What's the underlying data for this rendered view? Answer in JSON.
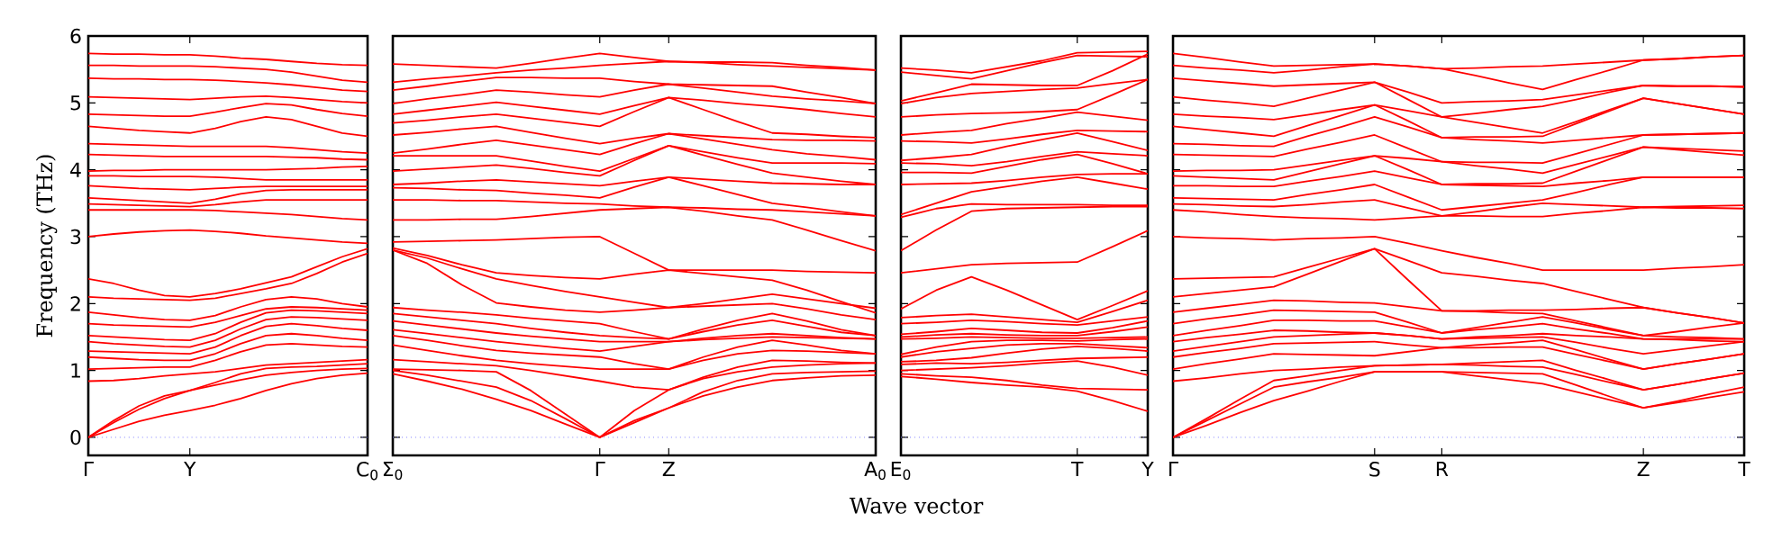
{
  "chart_data": [
    {
      "type": "line",
      "color": "#ff0000",
      "ylabel": "Frequency (THz)",
      "ylim": [
        -0.27,
        6
      ],
      "categories": [
        "Γ",
        null,
        null,
        null,
        "Y",
        null,
        null,
        null,
        null,
        null,
        null,
        "C$_{0}$"
      ],
      "yticks": [
        0,
        1,
        2,
        3,
        4,
        5,
        6
      ],
      "ref_lines": [
        {
          "axis": "y",
          "value": 0,
          "color": "#8080ff",
          "line_style": "dotted"
        }
      ],
      "series": [
        {
          "values": [
            0,
            0.12,
            0.24,
            0.33,
            0.4,
            0.48,
            0.58,
            0.7,
            0.8,
            0.88,
            0.93,
            0.96
          ]
        },
        {
          "values": [
            0,
            0.22,
            0.42,
            0.58,
            0.7,
            0.78,
            0.86,
            0.93,
            0.97,
            1.0,
            1.02,
            1.03
          ]
        },
        {
          "values": [
            0,
            0.25,
            0.47,
            0.62,
            0.7,
            0.82,
            0.95,
            1.03,
            1.05,
            1.06,
            1.08,
            1.1
          ]
        },
        {
          "values": [
            0.84,
            0.85,
            0.88,
            0.92,
            0.95,
            0.98,
            1.03,
            1.08,
            1.1,
            1.12,
            1.14,
            1.16
          ]
        },
        {
          "values": [
            1.02,
            1.03,
            1.04,
            1.05,
            1.05,
            1.15,
            1.28,
            1.38,
            1.4,
            1.38,
            1.36,
            1.35
          ]
        },
        {
          "values": [
            1.2,
            1.18,
            1.16,
            1.15,
            1.15,
            1.25,
            1.4,
            1.52,
            1.55,
            1.52,
            1.48,
            1.45
          ]
        },
        {
          "values": [
            1.29,
            1.28,
            1.27,
            1.26,
            1.25,
            1.35,
            1.52,
            1.66,
            1.7,
            1.67,
            1.63,
            1.6
          ]
        },
        {
          "values": [
            1.43,
            1.4,
            1.38,
            1.36,
            1.35,
            1.45,
            1.62,
            1.76,
            1.8,
            1.79,
            1.77,
            1.75
          ]
        },
        {
          "values": [
            1.52,
            1.5,
            1.48,
            1.46,
            1.45,
            1.55,
            1.72,
            1.86,
            1.9,
            1.89,
            1.87,
            1.85
          ]
        },
        {
          "values": [
            1.7,
            1.68,
            1.67,
            1.66,
            1.65,
            1.72,
            1.82,
            1.92,
            1.95,
            1.94,
            1.92,
            1.9
          ]
        },
        {
          "values": [
            1.87,
            1.83,
            1.79,
            1.76,
            1.75,
            1.82,
            1.95,
            2.06,
            2.1,
            2.07,
            2.0,
            1.95
          ]
        },
        {
          "values": [
            2.1,
            2.08,
            2.07,
            2.06,
            2.05,
            2.08,
            2.15,
            2.22,
            2.3,
            2.45,
            2.62,
            2.75
          ]
        },
        {
          "values": [
            2.37,
            2.3,
            2.2,
            2.12,
            2.1,
            2.15,
            2.22,
            2.31,
            2.4,
            2.55,
            2.7,
            2.82
          ]
        },
        {
          "values": [
            3.0,
            3.04,
            3.07,
            3.09,
            3.1,
            3.08,
            3.05,
            3.01,
            2.98,
            2.95,
            2.92,
            2.9
          ]
        },
        {
          "values": [
            3.4,
            3.4,
            3.4,
            3.4,
            3.4,
            3.39,
            3.37,
            3.35,
            3.33,
            3.3,
            3.27,
            3.25
          ]
        },
        {
          "values": [
            3.49,
            3.48,
            3.47,
            3.46,
            3.45,
            3.48,
            3.52,
            3.55,
            3.55,
            3.55,
            3.55,
            3.55
          ]
        },
        {
          "values": [
            3.58,
            3.56,
            3.54,
            3.52,
            3.5,
            3.56,
            3.64,
            3.69,
            3.7,
            3.7,
            3.7,
            3.7
          ]
        },
        {
          "values": [
            3.76,
            3.74,
            3.72,
            3.71,
            3.7,
            3.72,
            3.74,
            3.75,
            3.75,
            3.75,
            3.75,
            3.75
          ]
        },
        {
          "values": [
            3.91,
            3.91,
            3.9,
            3.9,
            3.9,
            3.89,
            3.87,
            3.85,
            3.85,
            3.85,
            3.85,
            3.85
          ]
        },
        {
          "values": [
            3.98,
            3.99,
            3.99,
            4.0,
            4.0,
            4.0,
            4.0,
            4.0,
            4.01,
            4.02,
            4.04,
            4.05
          ]
        },
        {
          "values": [
            4.23,
            4.22,
            4.21,
            4.2,
            4.2,
            4.2,
            4.2,
            4.2,
            4.19,
            4.18,
            4.16,
            4.15
          ]
        },
        {
          "values": [
            4.39,
            4.38,
            4.37,
            4.36,
            4.35,
            4.35,
            4.35,
            4.35,
            4.33,
            4.3,
            4.27,
            4.25
          ]
        },
        {
          "values": [
            4.65,
            4.62,
            4.59,
            4.57,
            4.55,
            4.62,
            4.72,
            4.79,
            4.75,
            4.65,
            4.55,
            4.5
          ]
        },
        {
          "values": [
            4.83,
            4.82,
            4.81,
            4.8,
            4.8,
            4.86,
            4.93,
            4.99,
            4.97,
            4.9,
            4.84,
            4.8
          ]
        },
        {
          "values": [
            5.09,
            5.08,
            5.07,
            5.06,
            5.05,
            5.07,
            5.09,
            5.1,
            5.08,
            5.05,
            5.02,
            5.0
          ]
        },
        {
          "values": [
            5.37,
            5.36,
            5.36,
            5.35,
            5.35,
            5.34,
            5.32,
            5.3,
            5.27,
            5.23,
            5.19,
            5.17
          ]
        },
        {
          "values": [
            5.56,
            5.56,
            5.55,
            5.55,
            5.55,
            5.54,
            5.52,
            5.5,
            5.46,
            5.4,
            5.34,
            5.31
          ]
        },
        {
          "values": [
            5.74,
            5.73,
            5.73,
            5.72,
            5.72,
            5.7,
            5.67,
            5.65,
            5.62,
            5.59,
            5.57,
            5.56
          ]
        }
      ]
    },
    {
      "type": "line",
      "color": "#ff0000",
      "xlabel": "Wave vector",
      "ylim": [
        -0.27,
        6
      ],
      "categories": [
        "Σ$_{0}$",
        null,
        null,
        null,
        null,
        null,
        "Γ",
        null,
        "Z",
        null,
        null,
        null,
        null,
        null,
        "A$_{0}$"
      ],
      "yticks": [
        0,
        1,
        2,
        3,
        4,
        5,
        6
      ],
      "tick_labels": "x",
      "ref_lines": [
        {
          "axis": "y",
          "value": 0,
          "color": "#8080ff",
          "line_style": "dotted"
        }
      ],
      "series": [
        {
          "values": [
            0.95,
            0.84,
            0.72,
            0.57,
            0.4,
            0.2,
            0,
            0.22,
            0.44,
            0.62,
            0.75,
            0.85,
            0.89,
            0.92,
            0.93
          ]
        },
        {
          "values": [
            1.0,
            0.93,
            0.84,
            0.75,
            0.55,
            0.28,
            0,
            0.25,
            0.44,
            0.68,
            0.85,
            0.95,
            0.97,
            0.98,
            0.99
          ]
        },
        {
          "values": [
            1.02,
            1.01,
            1.0,
            0.98,
            0.7,
            0.35,
            0,
            0.4,
            0.71,
            0.88,
            0.98,
            1.05,
            1.08,
            1.1,
            1.11
          ]
        },
        {
          "values": [
            1.16,
            1.13,
            1.1,
            1.07,
            1.0,
            0.92,
            0.84,
            0.75,
            0.71,
            0.9,
            1.05,
            1.15,
            1.14,
            1.12,
            1.11
          ]
        },
        {
          "values": [
            1.38,
            1.3,
            1.22,
            1.15,
            1.1,
            1.06,
            1.02,
            1.02,
            1.02,
            1.15,
            1.25,
            1.3,
            1.29,
            1.27,
            1.25
          ]
        },
        {
          "values": [
            1.52,
            1.45,
            1.37,
            1.3,
            1.26,
            1.23,
            1.2,
            1.1,
            1.02,
            1.2,
            1.35,
            1.45,
            1.38,
            1.3,
            1.25
          ]
        },
        {
          "values": [
            1.61,
            1.55,
            1.49,
            1.43,
            1.38,
            1.33,
            1.29,
            1.36,
            1.43,
            1.46,
            1.48,
            1.5,
            1.49,
            1.48,
            1.47
          ]
        },
        {
          "values": [
            1.74,
            1.68,
            1.62,
            1.56,
            1.51,
            1.47,
            1.43,
            1.43,
            1.43,
            1.48,
            1.52,
            1.55,
            1.52,
            1.49,
            1.47
          ]
        },
        {
          "values": [
            1.85,
            1.8,
            1.75,
            1.7,
            1.63,
            1.57,
            1.52,
            1.49,
            1.47,
            1.58,
            1.68,
            1.75,
            1.66,
            1.57,
            1.52
          ]
        },
        {
          "values": [
            1.94,
            1.9,
            1.87,
            1.83,
            1.78,
            1.74,
            1.7,
            1.58,
            1.47,
            1.62,
            1.75,
            1.85,
            1.74,
            1.61,
            1.52
          ]
        },
        {
          "values": [
            2.8,
            2.6,
            2.28,
            2.01,
            1.95,
            1.9,
            1.87,
            1.9,
            1.94,
            1.96,
            1.98,
            2.0,
            1.92,
            1.83,
            1.76
          ]
        },
        {
          "values": [
            2.8,
            2.68,
            2.52,
            2.37,
            2.27,
            2.18,
            2.1,
            2.02,
            1.94,
            2.0,
            2.07,
            2.14,
            2.07,
            2.0,
            1.93
          ]
        },
        {
          "values": [
            2.83,
            2.72,
            2.58,
            2.46,
            2.42,
            2.39,
            2.37,
            2.44,
            2.5,
            2.45,
            2.4,
            2.35,
            2.2,
            2.03,
            1.86
          ]
        },
        {
          "values": [
            2.92,
            2.93,
            2.94,
            2.95,
            2.97,
            2.99,
            3.0,
            2.75,
            2.5,
            2.5,
            2.5,
            2.5,
            2.48,
            2.47,
            2.46
          ]
        },
        {
          "values": [
            3.25,
            3.25,
            3.26,
            3.26,
            3.3,
            3.35,
            3.4,
            3.42,
            3.44,
            3.38,
            3.31,
            3.25,
            3.1,
            2.94,
            2.79
          ]
        },
        {
          "values": [
            3.55,
            3.55,
            3.54,
            3.54,
            3.52,
            3.5,
            3.49,
            3.46,
            3.44,
            3.43,
            3.41,
            3.4,
            3.37,
            3.34,
            3.31
          ]
        },
        {
          "values": [
            3.73,
            3.72,
            3.7,
            3.69,
            3.65,
            3.62,
            3.58,
            3.74,
            3.89,
            3.76,
            3.63,
            3.5,
            3.44,
            3.37,
            3.31
          ]
        },
        {
          "values": [
            3.78,
            3.8,
            3.83,
            3.85,
            3.82,
            3.79,
            3.76,
            3.83,
            3.89,
            3.86,
            3.83,
            3.8,
            3.79,
            3.78,
            3.78
          ]
        },
        {
          "values": [
            3.98,
            4.01,
            4.04,
            4.07,
            4.02,
            3.96,
            3.91,
            4.14,
            4.36,
            4.22,
            4.08,
            3.95,
            3.89,
            3.83,
            3.78
          ]
        },
        {
          "values": [
            4.21,
            4.21,
            4.21,
            4.21,
            4.13,
            4.05,
            3.98,
            4.17,
            4.36,
            4.27,
            4.18,
            4.1,
            4.1,
            4.1,
            4.09
          ]
        },
        {
          "values": [
            4.25,
            4.31,
            4.38,
            4.44,
            4.37,
            4.3,
            4.23,
            4.39,
            4.54,
            4.46,
            4.38,
            4.3,
            4.24,
            4.2,
            4.15
          ]
        },
        {
          "values": [
            4.52,
            4.56,
            4.61,
            4.65,
            4.56,
            4.47,
            4.39,
            4.47,
            4.54,
            4.51,
            4.48,
            4.45,
            4.44,
            4.44,
            4.43
          ]
        },
        {
          "values": [
            4.7,
            4.74,
            4.79,
            4.83,
            4.77,
            4.71,
            4.65,
            4.87,
            5.08,
            4.9,
            4.72,
            4.55,
            4.53,
            4.5,
            4.48
          ]
        },
        {
          "values": [
            4.83,
            4.89,
            4.95,
            5.01,
            4.95,
            4.89,
            4.83,
            4.96,
            5.08,
            5.04,
            4.99,
            4.95,
            4.9,
            4.84,
            4.79
          ]
        },
        {
          "values": [
            4.99,
            5.06,
            5.12,
            5.19,
            5.16,
            5.12,
            5.09,
            5.19,
            5.28,
            5.22,
            5.16,
            5.1,
            5.06,
            5.03,
            4.99
          ]
        },
        {
          "values": [
            5.19,
            5.25,
            5.32,
            5.38,
            5.38,
            5.37,
            5.37,
            5.32,
            5.28,
            5.27,
            5.26,
            5.25,
            5.16,
            5.08,
            4.99
          ]
        },
        {
          "values": [
            5.31,
            5.36,
            5.4,
            5.45,
            5.49,
            5.52,
            5.56,
            5.59,
            5.62,
            5.6,
            5.57,
            5.55,
            5.53,
            5.51,
            5.49
          ]
        },
        {
          "values": [
            5.58,
            5.56,
            5.54,
            5.52,
            5.59,
            5.67,
            5.74,
            5.68,
            5.62,
            5.61,
            5.61,
            5.6,
            5.56,
            5.53,
            5.49
          ]
        }
      ]
    },
    {
      "type": "line",
      "color": "#ff0000",
      "ylim": [
        -0.27,
        6
      ],
      "categories": [
        "E$_{0}$",
        null,
        null,
        null,
        null,
        "T",
        null,
        "Y"
      ],
      "yticks": [
        0,
        1,
        2,
        3,
        4,
        5,
        6
      ],
      "tick_labels": "x",
      "ref_lines": [
        {
          "axis": "y",
          "value": 0,
          "color": "#8080ff",
          "line_style": "dotted"
        }
      ],
      "series": [
        {
          "values": [
            0.91,
            0.87,
            0.82,
            0.78,
            0.75,
            0.69,
            0.55,
            0.39
          ]
        },
        {
          "values": [
            0.95,
            0.92,
            0.9,
            0.85,
            0.78,
            0.73,
            0.72,
            0.71
          ]
        },
        {
          "values": [
            1.0,
            1.02,
            1.04,
            1.07,
            1.11,
            1.14,
            1.05,
            0.93
          ]
        },
        {
          "values": [
            1.09,
            1.11,
            1.1,
            1.12,
            1.15,
            1.18,
            1.19,
            1.2
          ]
        },
        {
          "values": [
            1.13,
            1.15,
            1.19,
            1.26,
            1.32,
            1.36,
            1.33,
            1.29
          ]
        },
        {
          "values": [
            1.2,
            1.28,
            1.33,
            1.38,
            1.4,
            1.4,
            1.37,
            1.34
          ]
        },
        {
          "values": [
            1.24,
            1.35,
            1.43,
            1.45,
            1.45,
            1.44,
            1.46,
            1.47
          ]
        },
        {
          "values": [
            1.47,
            1.48,
            1.5,
            1.49,
            1.48,
            1.48,
            1.49,
            1.5
          ]
        },
        {
          "values": [
            1.5,
            1.53,
            1.55,
            1.53,
            1.52,
            1.52,
            1.58,
            1.65
          ]
        },
        {
          "values": [
            1.54,
            1.58,
            1.63,
            1.6,
            1.57,
            1.56,
            1.64,
            1.74
          ]
        },
        {
          "values": [
            1.7,
            1.72,
            1.75,
            1.73,
            1.7,
            1.68,
            1.74,
            1.8
          ]
        },
        {
          "values": [
            1.79,
            1.82,
            1.84,
            1.8,
            1.76,
            1.72,
            1.88,
            2.05
          ]
        },
        {
          "values": [
            1.92,
            2.2,
            2.4,
            2.2,
            1.98,
            1.76,
            1.97,
            2.19
          ]
        },
        {
          "values": [
            2.46,
            2.52,
            2.58,
            2.6,
            2.61,
            2.62,
            2.85,
            3.09
          ]
        },
        {
          "values": [
            2.79,
            3.1,
            3.38,
            3.42,
            3.43,
            3.44,
            3.45,
            3.45
          ]
        },
        {
          "values": [
            3.29,
            3.42,
            3.49,
            3.48,
            3.48,
            3.48,
            3.47,
            3.47
          ]
        },
        {
          "values": [
            3.33,
            3.5,
            3.67,
            3.75,
            3.83,
            3.89,
            3.8,
            3.71
          ]
        },
        {
          "values": [
            3.78,
            3.79,
            3.8,
            3.84,
            3.89,
            3.93,
            3.94,
            3.94
          ]
        },
        {
          "values": [
            3.96,
            3.96,
            3.95,
            4.05,
            4.15,
            4.23,
            4.09,
            3.94
          ]
        },
        {
          "values": [
            4.1,
            4.09,
            4.06,
            4.12,
            4.2,
            4.27,
            4.24,
            4.21
          ]
        },
        {
          "values": [
            4.14,
            4.18,
            4.23,
            4.35,
            4.45,
            4.55,
            4.42,
            4.29
          ]
        },
        {
          "values": [
            4.43,
            4.42,
            4.4,
            4.46,
            4.53,
            4.59,
            4.58,
            4.57
          ]
        },
        {
          "values": [
            4.52,
            4.56,
            4.59,
            4.69,
            4.77,
            4.86,
            4.8,
            4.74
          ]
        },
        {
          "values": [
            4.79,
            4.82,
            4.84,
            4.85,
            4.87,
            4.9,
            5.12,
            5.35
          ]
        },
        {
          "values": [
            4.99,
            5.08,
            5.14,
            5.17,
            5.2,
            5.22,
            5.29,
            5.35
          ]
        },
        {
          "values": [
            5.03,
            5.15,
            5.28,
            5.27,
            5.26,
            5.26,
            5.48,
            5.73
          ]
        },
        {
          "values": [
            5.46,
            5.41,
            5.36,
            5.48,
            5.6,
            5.71,
            5.7,
            5.69
          ]
        },
        {
          "values": [
            5.52,
            5.49,
            5.45,
            5.54,
            5.63,
            5.75,
            5.76,
            5.77
          ]
        }
      ]
    },
    {
      "type": "line",
      "color": "#ff0000",
      "ylim": [
        -0.27,
        6
      ],
      "categories": [
        "Γ",
        null,
        null,
        null,
        null,
        null,
        "S",
        null,
        "R",
        null,
        null,
        null,
        null,
        null,
        "Z",
        null,
        null,
        "T"
      ],
      "yticks": [
        0,
        1,
        2,
        3,
        4,
        5,
        6
      ],
      "tick_labels": "x",
      "ref_lines": [
        {
          "axis": "y",
          "value": 0,
          "color": "#8080ff",
          "line_style": "dotted"
        }
      ],
      "series": [
        {
          "values": [
            0,
            0.18,
            0.37,
            0.55,
            0.69,
            0.84,
            0.98,
            0.98,
            0.98,
            0.92,
            0.86,
            0.8,
            0.68,
            0.56,
            0.44,
            0.52,
            0.6,
            0.68
          ]
        },
        {
          "values": [
            0,
            0.25,
            0.5,
            0.75,
            0.83,
            0.9,
            0.98,
            0.98,
            0.98,
            0.97,
            0.96,
            0.95,
            0.78,
            0.61,
            0.44,
            0.54,
            0.65,
            0.75
          ]
        },
        {
          "values": [
            0,
            0.28,
            0.57,
            0.85,
            0.92,
            1.0,
            1.07,
            1.08,
            1.09,
            1.08,
            1.06,
            1.05,
            0.94,
            0.82,
            0.71,
            0.79,
            0.88,
            0.96
          ]
        },
        {
          "values": [
            0.84,
            0.89,
            0.95,
            1.0,
            1.02,
            1.05,
            1.07,
            1.08,
            1.09,
            1.11,
            1.13,
            1.15,
            1.0,
            0.86,
            0.71,
            0.79,
            0.88,
            0.96
          ]
        },
        {
          "values": [
            1.02,
            1.1,
            1.17,
            1.25,
            1.24,
            1.23,
            1.22,
            1.28,
            1.34,
            1.34,
            1.35,
            1.35,
            1.24,
            1.13,
            1.02,
            1.1,
            1.17,
            1.25
          ]
        },
        {
          "values": [
            1.2,
            1.27,
            1.33,
            1.4,
            1.41,
            1.42,
            1.43,
            1.38,
            1.34,
            1.38,
            1.41,
            1.45,
            1.31,
            1.16,
            1.02,
            1.1,
            1.17,
            1.25
          ]
        },
        {
          "values": [
            1.29,
            1.36,
            1.43,
            1.5,
            1.52,
            1.54,
            1.56,
            1.52,
            1.47,
            1.48,
            1.49,
            1.5,
            1.42,
            1.33,
            1.25,
            1.31,
            1.37,
            1.43
          ]
        },
        {
          "values": [
            1.43,
            1.49,
            1.54,
            1.6,
            1.59,
            1.57,
            1.56,
            1.52,
            1.47,
            1.5,
            1.52,
            1.55,
            1.52,
            1.5,
            1.47,
            1.46,
            1.44,
            1.43
          ]
        },
        {
          "values": [
            1.52,
            1.6,
            1.67,
            1.75,
            1.75,
            1.74,
            1.74,
            1.65,
            1.56,
            1.61,
            1.65,
            1.7,
            1.62,
            1.55,
            1.47,
            1.47,
            1.47,
            1.47
          ]
        },
        {
          "values": [
            1.7,
            1.77,
            1.83,
            1.9,
            1.89,
            1.88,
            1.87,
            1.72,
            1.56,
            1.64,
            1.72,
            1.8,
            1.71,
            1.61,
            1.52,
            1.5,
            1.49,
            1.47
          ]
        },
        {
          "values": [
            1.87,
            1.93,
            1.99,
            2.05,
            2.04,
            2.02,
            2.01,
            1.95,
            1.89,
            1.88,
            1.86,
            1.85,
            1.74,
            1.63,
            1.52,
            1.58,
            1.65,
            1.71
          ]
        },
        {
          "values": [
            2.1,
            2.15,
            2.2,
            2.25,
            2.44,
            2.63,
            2.82,
            2.35,
            1.89,
            1.89,
            1.9,
            1.9,
            1.91,
            1.93,
            1.94,
            1.86,
            1.79,
            1.71
          ]
        },
        {
          "values": [
            2.37,
            2.38,
            2.39,
            2.4,
            2.54,
            2.68,
            2.82,
            2.64,
            2.46,
            2.41,
            2.35,
            2.3,
            2.18,
            2.06,
            1.94,
            1.86,
            1.79,
            1.71
          ]
        },
        {
          "values": [
            3.0,
            2.98,
            2.97,
            2.95,
            2.97,
            2.98,
            3.0,
            2.9,
            2.79,
            2.69,
            2.6,
            2.5,
            2.5,
            2.5,
            2.5,
            2.53,
            2.55,
            2.58
          ]
        },
        {
          "values": [
            3.4,
            3.37,
            3.33,
            3.3,
            3.28,
            3.27,
            3.25,
            3.28,
            3.31,
            3.31,
            3.3,
            3.3,
            3.35,
            3.39,
            3.44,
            3.43,
            3.43,
            3.42
          ]
        },
        {
          "values": [
            3.49,
            3.48,
            3.46,
            3.45,
            3.48,
            3.52,
            3.55,
            3.43,
            3.31,
            3.37,
            3.44,
            3.5,
            3.48,
            3.46,
            3.44,
            3.45,
            3.46,
            3.47
          ]
        },
        {
          "values": [
            3.58,
            3.57,
            3.56,
            3.55,
            3.63,
            3.7,
            3.78,
            3.59,
            3.4,
            3.45,
            3.5,
            3.55,
            3.66,
            3.78,
            3.89,
            3.89,
            3.89,
            3.89
          ]
        },
        {
          "values": [
            3.76,
            3.76,
            3.75,
            3.75,
            3.83,
            3.9,
            3.98,
            3.88,
            3.78,
            3.77,
            3.76,
            3.75,
            3.8,
            3.84,
            3.89,
            3.89,
            3.89,
            3.89
          ]
        },
        {
          "values": [
            3.91,
            3.89,
            3.87,
            3.85,
            3.97,
            4.09,
            4.21,
            4.0,
            3.78,
            3.79,
            3.79,
            3.8,
            3.98,
            4.16,
            4.34,
            4.3,
            4.26,
            4.22
          ]
        },
        {
          "values": [
            3.98,
            3.99,
            3.99,
            4.0,
            4.07,
            4.14,
            4.21,
            4.17,
            4.12,
            4.06,
            4.01,
            3.95,
            4.08,
            4.21,
            4.34,
            4.32,
            4.3,
            4.28
          ]
        },
        {
          "values": [
            4.23,
            4.22,
            4.21,
            4.2,
            4.31,
            4.41,
            4.52,
            4.32,
            4.12,
            4.11,
            4.11,
            4.1,
            4.24,
            4.38,
            4.52,
            4.53,
            4.54,
            4.55
          ]
        },
        {
          "values": [
            4.39,
            4.38,
            4.36,
            4.35,
            4.5,
            4.64,
            4.79,
            4.64,
            4.48,
            4.45,
            4.43,
            4.4,
            4.44,
            4.48,
            4.52,
            4.53,
            4.54,
            4.55
          ]
        },
        {
          "values": [
            4.65,
            4.6,
            4.55,
            4.5,
            4.66,
            4.81,
            4.97,
            4.73,
            4.48,
            4.49,
            4.49,
            4.5,
            4.69,
            4.88,
            5.07,
            4.99,
            4.91,
            4.83
          ]
        },
        {
          "values": [
            4.83,
            4.8,
            4.78,
            4.75,
            4.82,
            4.9,
            4.97,
            4.88,
            4.79,
            4.71,
            4.63,
            4.55,
            4.72,
            4.9,
            5.07,
            4.99,
            4.91,
            4.83
          ]
        },
        {
          "values": [
            5.09,
            5.04,
            5.0,
            4.95,
            5.07,
            5.19,
            5.31,
            5.05,
            4.79,
            4.84,
            4.9,
            4.95,
            5.05,
            5.16,
            5.26,
            5.25,
            5.25,
            5.24
          ]
        },
        {
          "values": [
            5.37,
            5.33,
            5.29,
            5.25,
            5.27,
            5.29,
            5.31,
            5.16,
            5.0,
            5.02,
            5.03,
            5.05,
            5.12,
            5.19,
            5.26,
            5.25,
            5.25,
            5.24
          ]
        },
        {
          "values": [
            5.56,
            5.52,
            5.49,
            5.45,
            5.49,
            5.54,
            5.58,
            5.55,
            5.51,
            5.41,
            5.3,
            5.2,
            5.35,
            5.49,
            5.64,
            5.66,
            5.69,
            5.71
          ]
        },
        {
          "values": [
            5.74,
            5.68,
            5.61,
            5.55,
            5.56,
            5.57,
            5.58,
            5.55,
            5.51,
            5.52,
            5.54,
            5.55,
            5.58,
            5.61,
            5.64,
            5.66,
            5.69,
            5.71
          ]
        }
      ]
    }
  ]
}
